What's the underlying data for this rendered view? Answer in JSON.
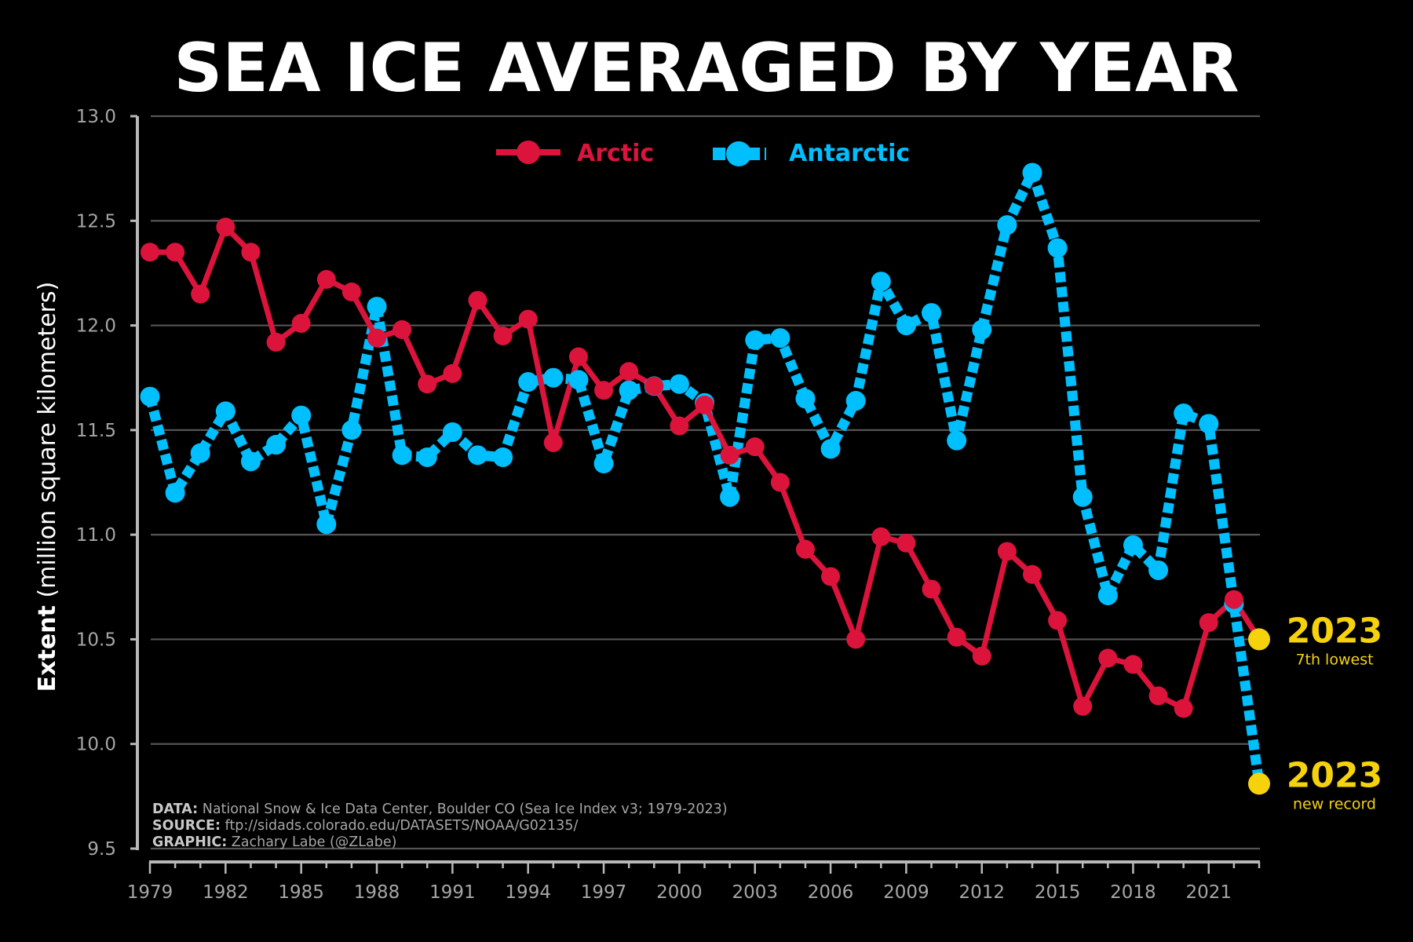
{
  "chart_data": {
    "type": "line",
    "title": "SEA ICE AVERAGED BY YEAR",
    "ylabel_bold": "Extent",
    "ylabel_rest": " (million square kilometers)",
    "ylim": [
      9.5,
      13.0
    ],
    "xlim": [
      1979,
      2023
    ],
    "yticks": [
      9.5,
      10.0,
      10.5,
      11.0,
      11.5,
      12.0,
      12.5,
      13.0
    ],
    "ytick_labels": [
      "9.5",
      "10.0",
      "10.5",
      "11.0",
      "11.5",
      "12.0",
      "12.5",
      "13.0"
    ],
    "xticks": [
      1979,
      1982,
      1985,
      1988,
      1991,
      1994,
      1997,
      2000,
      2003,
      2006,
      2009,
      2012,
      2015,
      2018,
      2021
    ],
    "grid": true,
    "legend_position": "top-center",
    "x": [
      1979,
      1980,
      1981,
      1982,
      1983,
      1984,
      1985,
      1986,
      1987,
      1988,
      1989,
      1990,
      1991,
      1992,
      1993,
      1994,
      1995,
      1996,
      1997,
      1998,
      1999,
      2000,
      2001,
      2002,
      2003,
      2004,
      2005,
      2006,
      2007,
      2008,
      2009,
      2010,
      2011,
      2012,
      2013,
      2014,
      2015,
      2016,
      2017,
      2018,
      2019,
      2020,
      2021,
      2022,
      2023
    ],
    "series": [
      {
        "name": "Arctic",
        "color": "#dc143c",
        "style": "solid",
        "values": [
          12.35,
          12.35,
          12.15,
          12.47,
          12.35,
          11.92,
          12.01,
          12.22,
          12.16,
          11.94,
          11.98,
          11.72,
          11.77,
          12.12,
          11.95,
          12.03,
          11.44,
          11.85,
          11.69,
          11.78,
          11.71,
          11.52,
          11.62,
          11.38,
          11.42,
          11.25,
          10.93,
          10.8,
          10.5,
          10.99,
          10.96,
          10.74,
          10.51,
          10.42,
          10.92,
          10.81,
          10.59,
          10.18,
          10.41,
          10.38,
          10.23,
          10.17,
          10.58,
          10.69,
          10.5
        ]
      },
      {
        "name": "Antarctic",
        "color": "#00bfff",
        "style": "dashed",
        "values": [
          11.66,
          11.2,
          11.39,
          11.59,
          11.35,
          11.43,
          11.57,
          11.05,
          11.5,
          12.09,
          11.38,
          11.37,
          11.49,
          11.38,
          11.37,
          11.73,
          11.75,
          11.74,
          11.34,
          11.69,
          11.71,
          11.72,
          11.63,
          11.18,
          11.93,
          11.94,
          11.65,
          11.41,
          11.64,
          12.21,
          12.0,
          12.06,
          11.45,
          11.98,
          12.48,
          12.73,
          12.37,
          11.18,
          10.71,
          10.95,
          10.83,
          11.58,
          11.53,
          10.67,
          9.81
        ]
      }
    ],
    "annotations": [
      {
        "series": "Arctic",
        "year": "2023",
        "note": "7th lowest",
        "value": 10.5,
        "color": "#f5d20c"
      },
      {
        "series": "Antarctic",
        "year": "2023",
        "note": "new record",
        "value": 9.81,
        "color": "#f5d20c"
      }
    ],
    "credits": [
      {
        "key": "DATA:",
        "text": " National Snow & Ice Data Center, Boulder CO (Sea Ice Index v3; 1979-2023)"
      },
      {
        "key": "SOURCE:",
        "text": " ftp://sidads.colorado.edu/DATASETS/NOAA/G02135/"
      },
      {
        "key": "GRAPHIC:",
        "text": " Zachary Labe (@ZLabe)"
      }
    ]
  }
}
